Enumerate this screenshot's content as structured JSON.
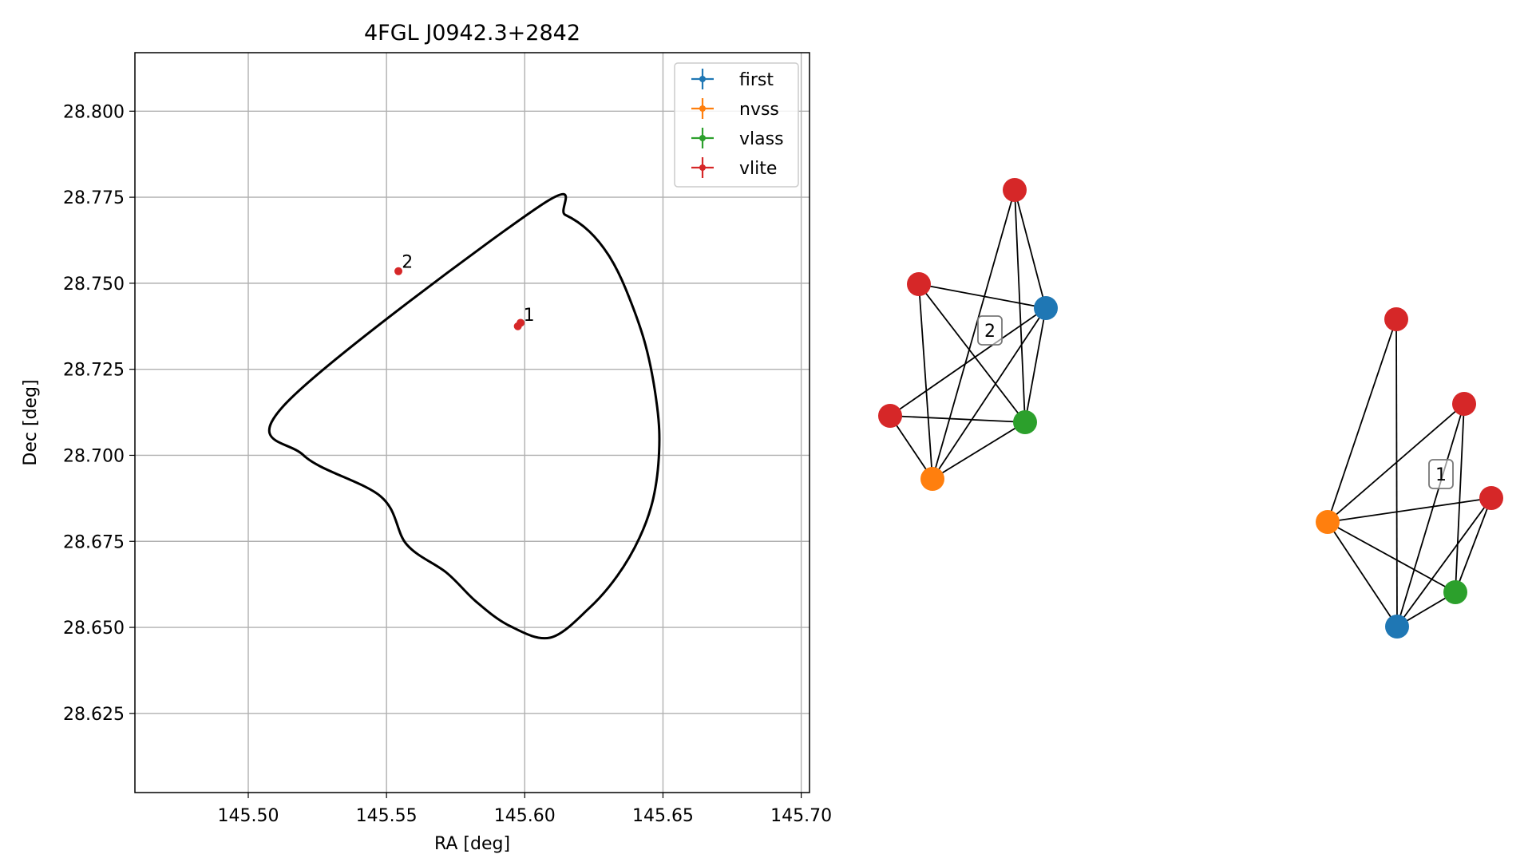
{
  "chart_data": [
    {
      "type": "scatter",
      "title": "4FGL J0942.3+2842",
      "xlabel": "RA [deg]",
      "ylabel": "Dec [deg]",
      "xlim": [
        145.459,
        145.703
      ],
      "ylim": [
        28.602,
        28.817
      ],
      "xticks": [
        145.5,
        145.55,
        145.6,
        145.65,
        145.7
      ],
      "xtick_labels": [
        "145.50",
        "145.55",
        "145.60",
        "145.65",
        "145.70"
      ],
      "yticks": [
        28.625,
        28.65,
        28.675,
        28.7,
        28.725,
        28.75,
        28.775,
        28.8
      ],
      "ytick_labels": [
        "28.625",
        "28.650",
        "28.675",
        "28.700",
        "28.725",
        "28.750",
        "28.775",
        "28.800"
      ],
      "grid": true,
      "legend_position": "top-right",
      "series": [
        {
          "name": "first",
          "color": "#1f77b4",
          "points": []
        },
        {
          "name": "nvss",
          "color": "#ff7f0e",
          "points": []
        },
        {
          "name": "vlass",
          "color": "#2ca02c",
          "points": []
        },
        {
          "name": "vlite",
          "color": "#d62728",
          "points": [
            {
              "x": 145.5975,
              "y": 28.7375
            },
            {
              "x": 145.5985,
              "y": 28.7385
            },
            {
              "x": 145.5543,
              "y": 28.7535
            }
          ]
        }
      ],
      "annotations": [
        {
          "text": "1",
          "x": 145.5995,
          "y": 28.7395
        },
        {
          "text": "2",
          "x": 145.5555,
          "y": 28.755
        }
      ],
      "ellipse": {
        "center": [
          145.581,
          28.7095
        ],
        "points": [
          [
            145.6048,
            28.7721
          ],
          [
            145.6146,
            28.7699
          ],
          [
            145.6233,
            28.7651
          ],
          [
            145.6306,
            28.7578
          ],
          [
            145.6366,
            28.7482
          ],
          [
            145.6437,
            28.732
          ],
          [
            145.6479,
            28.714
          ],
          [
            145.6486,
            28.701
          ],
          [
            145.6465,
            28.6875
          ],
          [
            145.6415,
            28.676
          ],
          [
            145.6335,
            28.665
          ],
          [
            145.6232,
            28.6555
          ],
          [
            145.6091,
            28.647
          ],
          [
            145.5944,
            28.6505
          ],
          [
            145.5824,
            28.6575
          ],
          [
            145.5717,
            28.6659
          ],
          [
            145.5573,
            28.6741
          ],
          [
            145.548,
            28.688
          ],
          [
            145.52,
            28.7
          ],
          [
            145.5135,
            28.715
          ]
        ]
      }
    },
    {
      "type": "network",
      "clusters": [
        {
          "label": "2",
          "nodes": [
            {
              "catalog": "vlite",
              "color": "#d62728"
            },
            {
              "catalog": "vlite",
              "color": "#d62728"
            },
            {
              "catalog": "first",
              "color": "#1f77b4"
            },
            {
              "catalog": "vlite",
              "color": "#d62728"
            },
            {
              "catalog": "vlass",
              "color": "#2ca02c"
            },
            {
              "catalog": "nvss",
              "color": "#ff7f0e"
            }
          ],
          "edges": [
            [
              0,
              2
            ],
            [
              0,
              4
            ],
            [
              0,
              5
            ],
            [
              1,
              2
            ],
            [
              1,
              4
            ],
            [
              1,
              5
            ],
            [
              2,
              3
            ],
            [
              2,
              4
            ],
            [
              2,
              5
            ],
            [
              3,
              4
            ],
            [
              3,
              5
            ],
            [
              4,
              5
            ]
          ]
        },
        {
          "label": "1",
          "nodes": [
            {
              "catalog": "vlite",
              "color": "#d62728"
            },
            {
              "catalog": "vlite",
              "color": "#d62728"
            },
            {
              "catalog": "vlite",
              "color": "#d62728"
            },
            {
              "catalog": "nvss",
              "color": "#ff7f0e"
            },
            {
              "catalog": "vlass",
              "color": "#2ca02c"
            },
            {
              "catalog": "first",
              "color": "#1f77b4"
            }
          ],
          "edges": [
            [
              0,
              3
            ],
            [
              0,
              5
            ],
            [
              1,
              3
            ],
            [
              1,
              4
            ],
            [
              1,
              5
            ],
            [
              2,
              3
            ],
            [
              2,
              4
            ],
            [
              2,
              5
            ],
            [
              3,
              4
            ],
            [
              3,
              5
            ],
            [
              4,
              5
            ]
          ]
        }
      ]
    }
  ]
}
